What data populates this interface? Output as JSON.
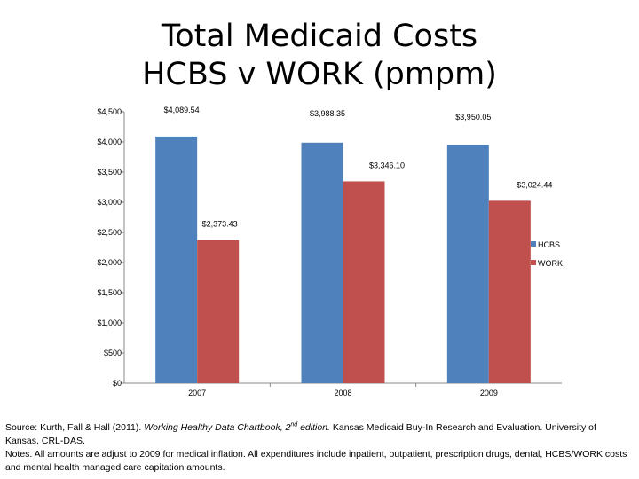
{
  "title_line1": "Total Medicaid Costs",
  "title_line2": "HCBS v WORK (pmpm)",
  "chart_data": {
    "type": "bar",
    "title": "Total Medicaid Costs HCBS v WORK (pmpm)",
    "categories": [
      "2007",
      "2008",
      "2009"
    ],
    "series": [
      {
        "name": "HCBS",
        "values": [
          4089.54,
          3988.35,
          3950.05
        ],
        "labels": [
          "$4,089.54",
          "$3,988.35",
          "$3,950.05"
        ],
        "color": "#4f81bd"
      },
      {
        "name": "WORK",
        "values": [
          2373.43,
          3346.1,
          3024.44
        ],
        "labels": [
          "$2,373.43",
          "$3,346.10",
          "$3,024.44"
        ],
        "color": "#c0504d"
      }
    ],
    "ylim": [
      0,
      4500
    ],
    "yticks": [
      0,
      500,
      1000,
      1500,
      2000,
      2500,
      3000,
      3500,
      4000,
      4500
    ],
    "ytick_labels": [
      "$0",
      "$500",
      "$1,000",
      "$1,500",
      "$2,000",
      "$2,500",
      "$3,000",
      "$3,500",
      "$4,000",
      "$4,500"
    ],
    "grid": false,
    "legend": "right"
  },
  "source": {
    "prefix": "Source: Kurth, Fall & Hall (2011). ",
    "italic": "Working Healthy Data Chartbook, 2",
    "sup": "nd",
    "italic2": " edition.",
    "suffix": " Kansas Medicaid Buy-In Research and Evaluation. University of Kansas, CRL-DAS.",
    "notes": "Notes. All amounts are adjust to 2009 for medical inflation. All expenditures include inpatient, outpatient, prescription drugs, dental, HCBS/WORK costs and mental health managed care capitation amounts."
  }
}
